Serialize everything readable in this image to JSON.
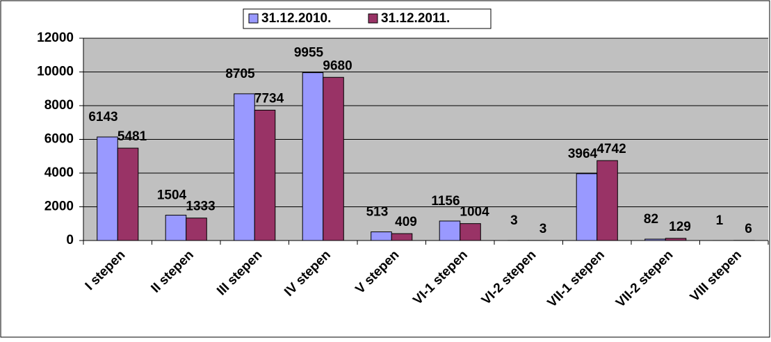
{
  "chart_data": {
    "type": "bar",
    "categories": [
      "I stepen",
      "II stepen",
      "III stepen",
      "IV stepen",
      "V stepen",
      "VI-1 stepen",
      "VI-2 stepen",
      "VII-1 stepen",
      "VII-2 stepen",
      "VIII stepen"
    ],
    "series": [
      {
        "name": "31.12.2010.",
        "color": "#9999ff",
        "values": [
          6143,
          1504,
          8705,
          9955,
          513,
          1156,
          3,
          3964,
          82,
          1
        ]
      },
      {
        "name": "31.12.2011.",
        "color": "#993366",
        "values": [
          5481,
          1333,
          7734,
          9680,
          409,
          1004,
          3,
          4742,
          129,
          6
        ]
      }
    ],
    "ylim": [
      0,
      12000
    ],
    "yticks": [
      0,
      2000,
      4000,
      6000,
      8000,
      10000,
      12000
    ],
    "grid": true,
    "legend": "top"
  }
}
